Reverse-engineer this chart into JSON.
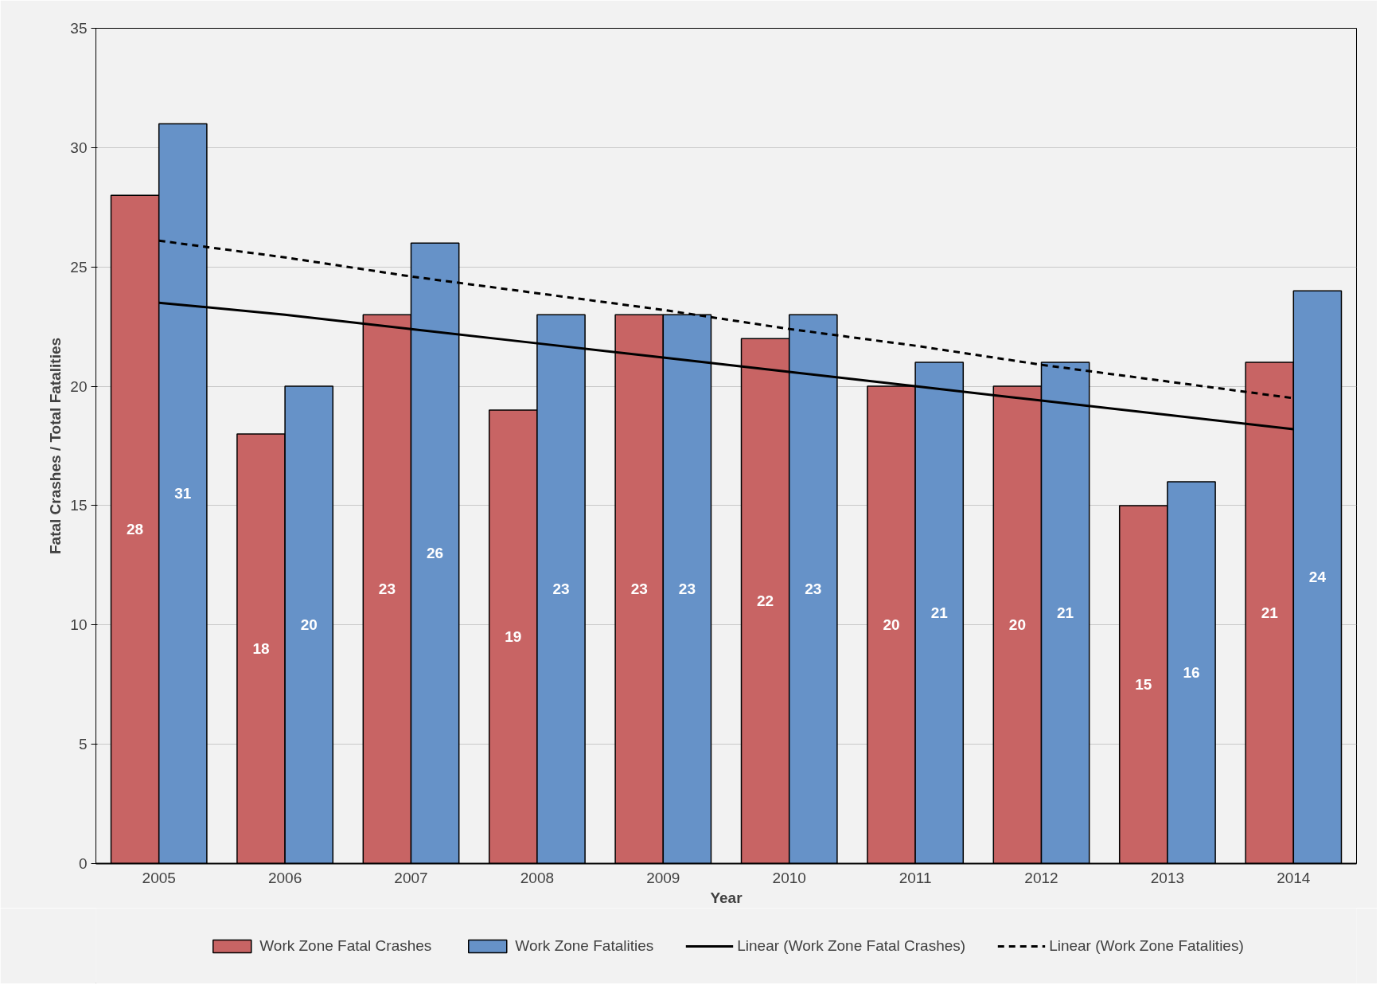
{
  "chart_data": {
    "type": "bar",
    "xlabel": "Year",
    "ylabel": "Fatal Crashes / Total Fatalities",
    "categories": [
      "2005",
      "2006",
      "2007",
      "2008",
      "2009",
      "2010",
      "2011",
      "2012",
      "2013",
      "2014"
    ],
    "series": [
      {
        "name": "Work Zone Fatal Crashes",
        "color": "#c86464",
        "values": [
          28,
          18,
          23,
          19,
          23,
          22,
          20,
          20,
          15,
          21
        ],
        "value_labels": [
          "28",
          "18",
          "23",
          "19",
          "23",
          "22",
          "20",
          "20",
          "15",
          "21"
        ]
      },
      {
        "name": "Work Zone Fatalities",
        "color": "#6692c8",
        "values": [
          31,
          20,
          26,
          23,
          23,
          23,
          21,
          21,
          16,
          24
        ],
        "value_labels": [
          "31",
          "20",
          "26",
          "23",
          "23",
          "23",
          "21",
          "21",
          "16",
          "24"
        ]
      },
      {
        "name": "Linear (Work Zone Fatal Crashes)",
        "type": "line",
        "color": "#000000",
        "line_style": "solid",
        "values": [
          23.5,
          23.0,
          22.4,
          21.8,
          21.2,
          20.6,
          20.0,
          19.4,
          18.8,
          18.2
        ]
      },
      {
        "name": "Linear (Work Zone Fatalities)",
        "type": "line",
        "color": "#000000",
        "line_style": "dashed",
        "values": [
          26.1,
          25.4,
          24.6,
          23.9,
          23.2,
          22.4,
          21.7,
          20.9,
          20.2,
          19.5
        ]
      }
    ],
    "ylim": [
      0,
      35
    ],
    "yticks": [
      0,
      5,
      10,
      15,
      20,
      25,
      30,
      35
    ],
    "grid": "y",
    "legend": "bottom"
  }
}
